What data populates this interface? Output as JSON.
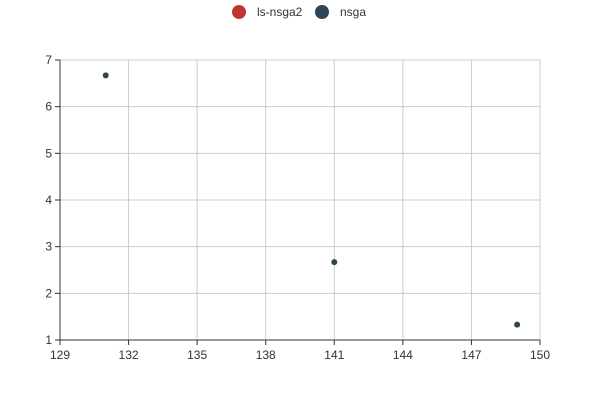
{
  "chart_data": {
    "type": "scatter",
    "xlim": [
      129,
      150
    ],
    "ylim": [
      1,
      7
    ],
    "x_ticks": [
      129,
      132,
      135,
      138,
      141,
      144,
      147,
      150
    ],
    "y_ticks": [
      1,
      2,
      3,
      4,
      5,
      6,
      7
    ],
    "grid": true,
    "legend_position": "top-center",
    "series": [
      {
        "name": "ls-nsga2",
        "color": "#c23531",
        "points": []
      },
      {
        "name": "nsga",
        "color": "#2f4554",
        "points": [
          [
            131,
            6.67
          ],
          [
            141,
            2.67
          ],
          [
            149,
            1.33
          ]
        ]
      }
    ]
  }
}
